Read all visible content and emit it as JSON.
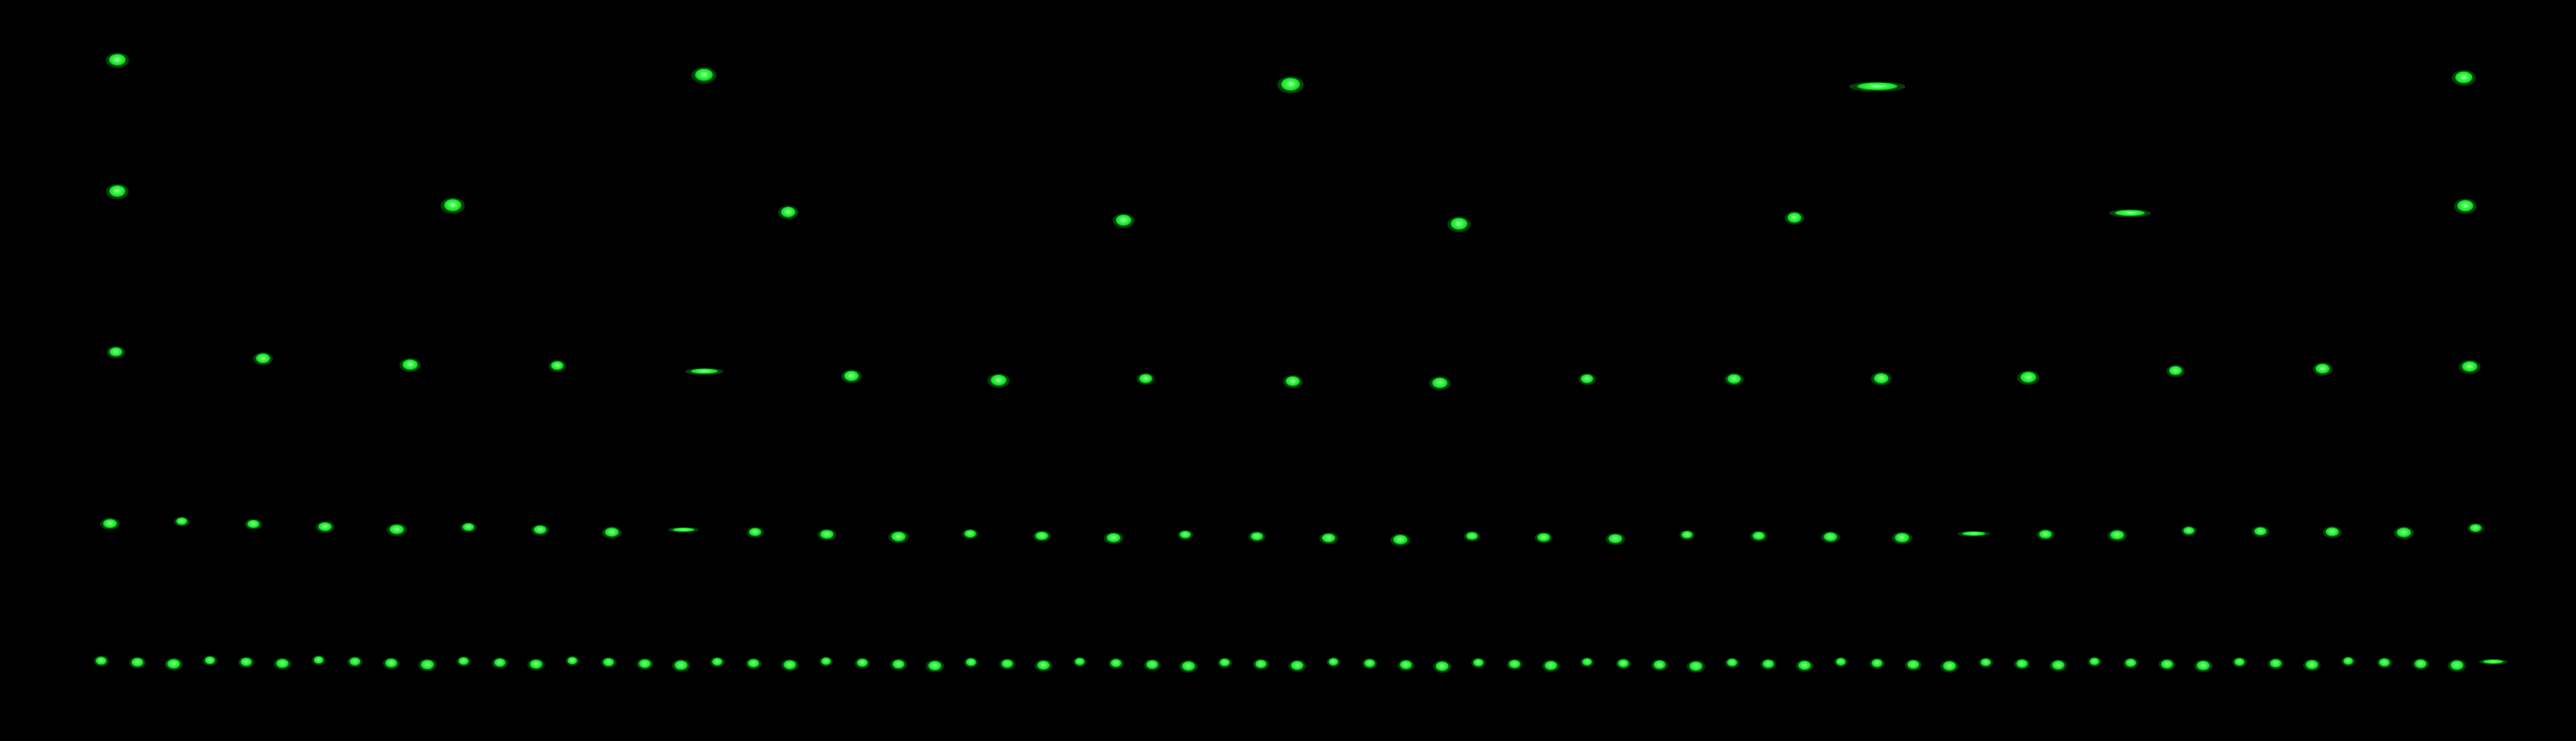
{
  "image": {
    "background": "#000000",
    "spot_color": "#1fff2e",
    "spot_highlight": "#c8ffc8",
    "spot_glow": "#00b81a"
  },
  "rows": [
    {
      "name": "row-1",
      "spot_count": 5
    },
    {
      "name": "row-2",
      "spot_count": 8
    },
    {
      "name": "row-3",
      "spot_count": 17
    },
    {
      "name": "row-4",
      "spot_count": 34
    },
    {
      "name": "row-5",
      "spot_count": 67
    }
  ]
}
